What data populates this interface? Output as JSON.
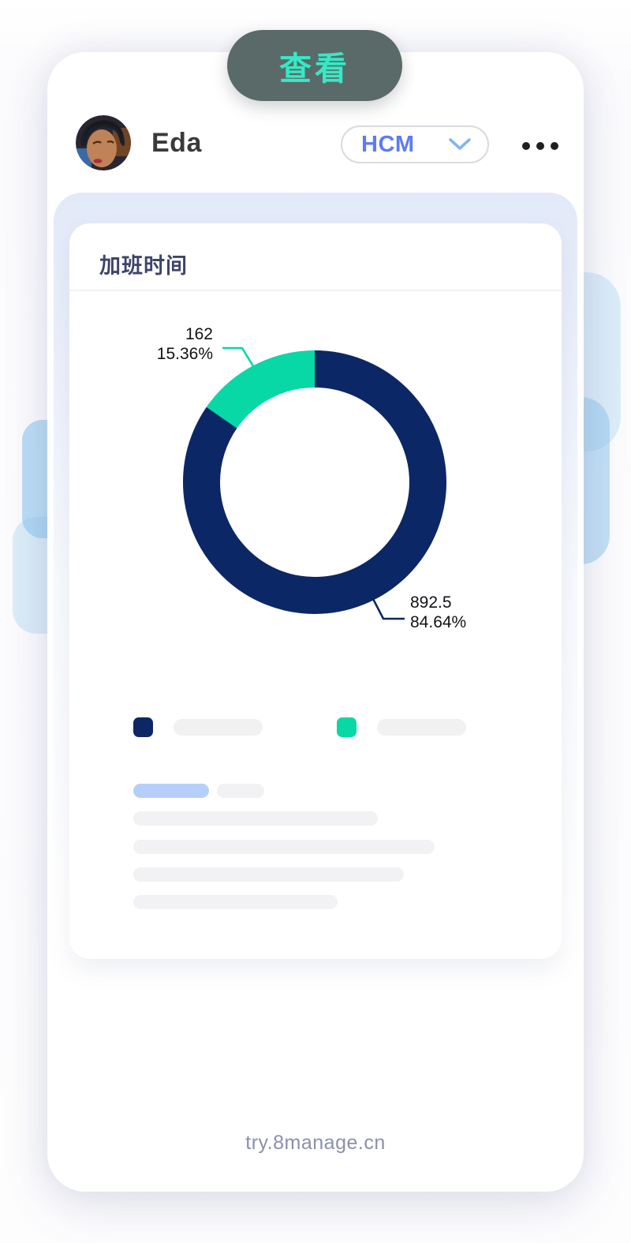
{
  "popup": {
    "view_button": "查看"
  },
  "header": {
    "user_name": "Eda",
    "module_select": {
      "value": "HCM"
    },
    "more_menu": "more-options"
  },
  "overtime_card": {
    "title": "加班时间"
  },
  "chart_data": {
    "type": "pie",
    "subtype": "donut",
    "title": "加班时间",
    "direction": "clockwise",
    "start_angle_deg": -90,
    "slices": [
      {
        "value": 892.5,
        "pct": 84.64,
        "value_label": "892.5",
        "pct_label": "84.64%",
        "color": "#0c2765"
      },
      {
        "value": 162,
        "pct": 15.36,
        "value_label": "162",
        "pct_label": "15.36%",
        "color": "#07d8a5"
      }
    ],
    "legend": {
      "position": "bottom",
      "labels_shown_as": "placeholder-pills"
    },
    "ring": {
      "outer_radius_px": 167,
      "thickness_px": 47
    }
  },
  "footer": {
    "url": "try.8manage.cn"
  },
  "theme": {
    "navy": "#0c2765",
    "green": "#07d8a5",
    "button_bg": "#5a6a68",
    "button_text": "#36e9c6",
    "accent_blue": "#5b7bf7",
    "skeleton_blue": "#b6cffa",
    "panel_lavender": "#e2e9f8"
  }
}
